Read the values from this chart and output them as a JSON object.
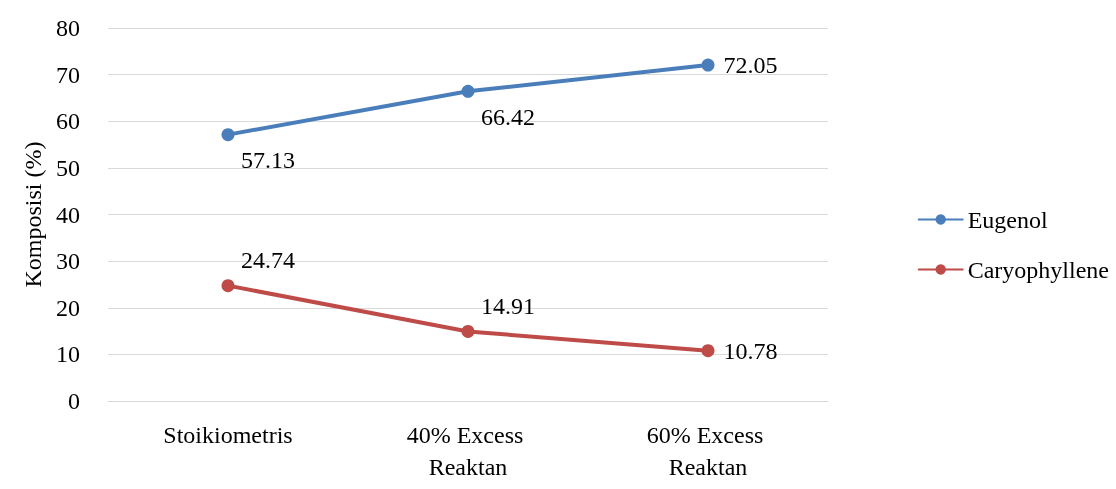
{
  "chart_data": {
    "type": "line",
    "ylabel": "Komposisi (%)",
    "categories": [
      "Stoikiometris",
      "40% Excess Reaktan",
      "60% Excess Reaktan"
    ],
    "series": [
      {
        "name": "Eugenol",
        "color": "#4a7ebb",
        "values": [
          57.13,
          66.42,
          72.05
        ]
      },
      {
        "name": "Caryophyllene",
        "color": "#be4b48",
        "values": [
          24.74,
          14.91,
          10.78
        ]
      }
    ],
    "ylim": [
      0,
      80
    ],
    "yticks": [
      0,
      10,
      20,
      30,
      40,
      50,
      60,
      70,
      80
    ],
    "grid": "y",
    "legend": "right",
    "marker": "circle",
    "line_style": "solid",
    "data_labels": true
  }
}
